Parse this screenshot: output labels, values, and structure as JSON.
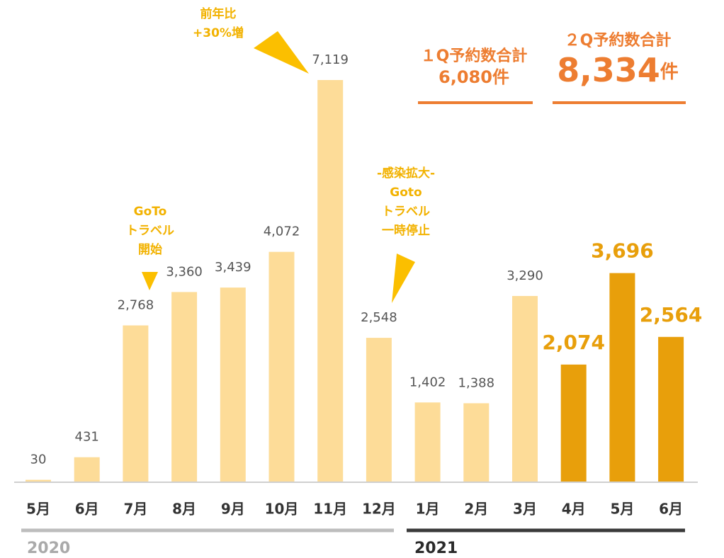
{
  "chart_data": {
    "type": "bar",
    "categories": [
      "5月",
      "6月",
      "7月",
      "8月",
      "9月",
      "10月",
      "11月",
      "12月",
      "1月",
      "2月",
      "3月",
      "4月",
      "5月",
      "6月"
    ],
    "values": [
      30,
      431,
      2768,
      3360,
      3439,
      4072,
      7119,
      2548,
      1402,
      1388,
      3290,
      2074,
      3696,
      2564
    ],
    "value_labels": [
      "30",
      "431",
      "2,768",
      "3,360",
      "3,439",
      "4,072",
      "7,119",
      "2,548",
      "1,402",
      "1,388",
      "3,290",
      "2,074",
      "3,696",
      "2,564"
    ],
    "colors": [
      "#fddc98",
      "#fddc98",
      "#fddc98",
      "#fddc98",
      "#fddc98",
      "#fddc98",
      "#fddc98",
      "#fddc98",
      "#fddc98",
      "#fddc98",
      "#fddc98",
      "#e89f0b",
      "#e89f0b",
      "#e89f0b"
    ],
    "years": [
      "2020",
      "2021"
    ],
    "annotations": [
      {
        "lines": [
          "前年比",
          "+30%増"
        ]
      },
      {
        "lines": [
          "GoTo",
          "トラベル",
          "開始"
        ]
      },
      {
        "lines": [
          "-感染拡大-",
          "Goto",
          "トラベル",
          "一時停止"
        ]
      }
    ],
    "summaries": [
      {
        "label": "１Q予約数合計",
        "value": "6,080",
        "unit": "件"
      },
      {
        "label": "２Q予約数合計",
        "value": "8,334",
        "unit": "件"
      }
    ]
  }
}
